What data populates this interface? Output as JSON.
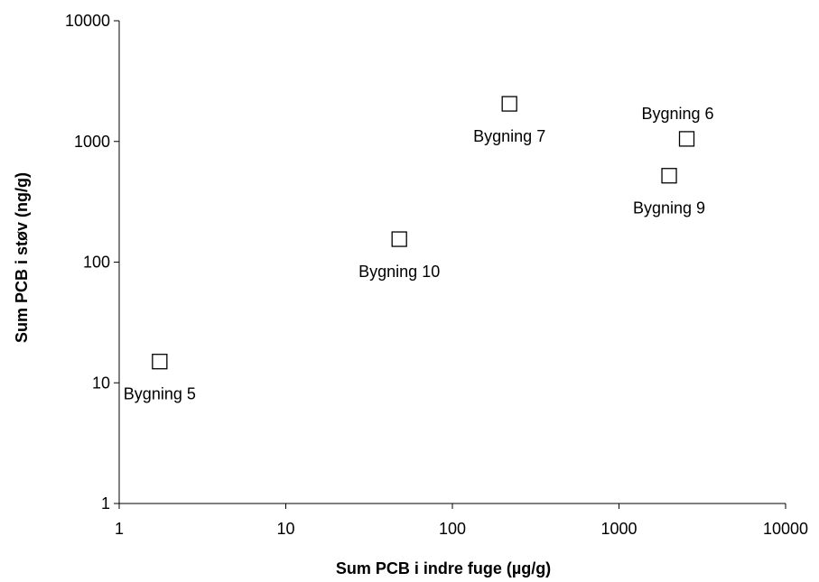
{
  "chart_data": {
    "type": "scatter",
    "title": "",
    "xlabel": "Sum PCB i indre fuge (µg/g)",
    "ylabel": "Sum PCB i støv (ng/g)",
    "xscale": "log",
    "yscale": "log",
    "xlim": [
      1,
      10000
    ],
    "ylim": [
      1,
      10000
    ],
    "xticks": [
      1,
      10,
      100,
      1000,
      10000
    ],
    "yticks": [
      1,
      10,
      100,
      1000,
      10000
    ],
    "xtick_labels": [
      "1",
      "10",
      "100",
      "1000",
      "10000"
    ],
    "ytick_labels": [
      "1",
      "10",
      "100",
      "1000",
      "10000"
    ],
    "grid": false,
    "marker": "open-square",
    "points": [
      {
        "label": "Bygning 5",
        "x": 1.75,
        "y": 15,
        "label_position": "below"
      },
      {
        "label": "Bygning 10",
        "x": 48,
        "y": 155,
        "label_position": "below"
      },
      {
        "label": "Bygning 7",
        "x": 220,
        "y": 2050,
        "label_position": "below"
      },
      {
        "label": "Bygning 9",
        "x": 2000,
        "y": 520,
        "label_position": "below"
      },
      {
        "label": "Bygning 6",
        "x": 2550,
        "y": 1050,
        "label_position": "above"
      }
    ]
  }
}
